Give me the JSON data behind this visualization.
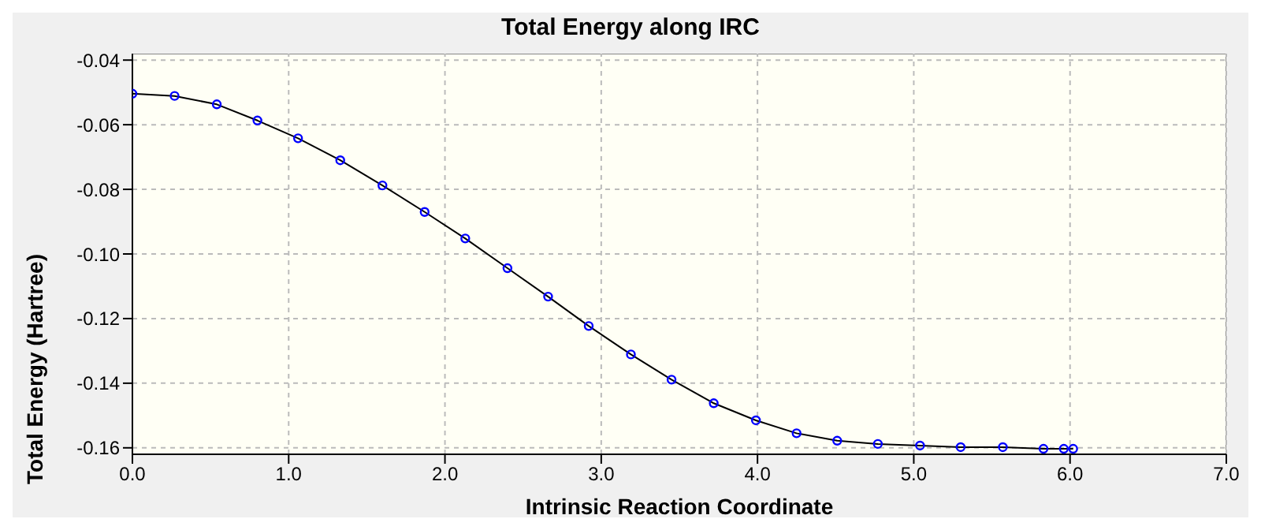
{
  "chart_data": {
    "type": "line",
    "title": "Total Energy along IRC",
    "xlabel": "Intrinsic Reaction Coordinate",
    "ylabel": "Total Energy (Hartree)",
    "x": [
      0,
      0.27,
      0.54,
      0.8,
      1.06,
      1.33,
      1.6,
      1.87,
      2.13,
      2.4,
      2.66,
      2.92,
      3.19,
      3.45,
      3.72,
      3.99,
      4.25,
      4.51,
      4.77,
      5.04,
      5.3,
      5.57,
      5.83,
      5.96,
      6.02
    ],
    "series": [
      {
        "color": "#0000ff",
        "values": [
          -0.0504,
          -0.0511,
          -0.0537,
          -0.0587,
          -0.0642,
          -0.071,
          -0.0788,
          -0.087,
          -0.0952,
          -0.1044,
          -0.1132,
          -0.1223,
          -0.1311,
          -0.1389,
          -0.1462,
          -0.1515,
          -0.1555,
          -0.1578,
          -0.1588,
          -0.1593,
          -0.1598,
          -0.1598,
          -0.1603,
          -0.1603,
          -0.1603
        ]
      }
    ],
    "xlim": [
      0,
      7
    ],
    "xticks": [
      {
        "value": 0,
        "label": "0.0"
      },
      {
        "value": 1,
        "label": "1.0"
      },
      {
        "value": 2,
        "label": "2.0"
      },
      {
        "value": 3,
        "label": "3.0"
      },
      {
        "value": 4,
        "label": "4.0"
      },
      {
        "value": 5,
        "label": "5.0"
      },
      {
        "value": 6,
        "label": "6.0"
      },
      {
        "value": 7,
        "label": "7.0"
      }
    ],
    "ylim": [
      -0.162,
      -0.038
    ],
    "yticks": [
      -0.16,
      -0.14,
      -0.12,
      {
        "value": -0.1,
        "label": "-0.10"
      },
      -0.08,
      -0.06,
      -0.04
    ],
    "grid": true,
    "marker": "circle",
    "line_style": "solid",
    "legend": false
  }
}
